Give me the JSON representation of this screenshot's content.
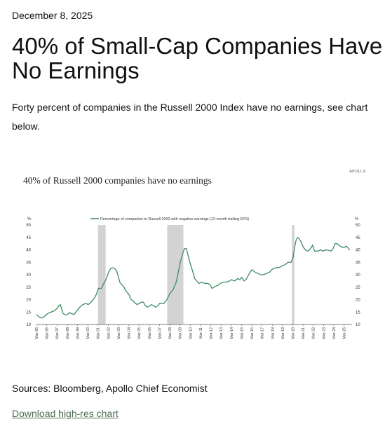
{
  "post": {
    "date": "December 8, 2025",
    "headline": "40% of Small-Cap Companies Have No Earnings",
    "intro": "Forty percent of companies in the Russell 2000 Index have no earnings, see chart below.",
    "sources": "Sources: Bloomberg, Apollo Chief Economist",
    "download_label": "Download high-res chart"
  },
  "colors": {
    "line": "#3e8a64",
    "recession": "#d3d3d3",
    "axis": "#555555"
  },
  "chart_data": {
    "type": "line",
    "title": "40% of Russell 2000 companies have no earnings",
    "brand": "APOLLO",
    "y_unit_left": "%",
    "y_unit_right": "%",
    "ylim": [
      10,
      50
    ],
    "yticks": [
      10,
      15,
      20,
      25,
      30,
      35,
      40,
      45,
      50
    ],
    "xlim": [
      1995.17,
      2025.95
    ],
    "xticks": [
      "Mar-95",
      "Mar-96",
      "Mar-97",
      "Mar-98",
      "Mar-99",
      "Mar-00",
      "Mar-01",
      "Mar-02",
      "Mar-03",
      "Mar-04",
      "Mar-05",
      "Mar-06",
      "Mar-07",
      "Mar-08",
      "Mar-09",
      "Mar-10",
      "Mar-11",
      "Mar-12",
      "Mar-13",
      "Mar-14",
      "Mar-15",
      "Mar-16",
      "Mar-17",
      "Mar-18",
      "Mar-19",
      "Mar-20",
      "Mar-21",
      "Mar-22",
      "Mar-23",
      "Mar-24",
      "Mar-25"
    ],
    "legend_position": "top-center",
    "grid": false,
    "recessions": [
      [
        2001.17,
        2001.92
      ],
      [
        2007.92,
        2009.5
      ],
      [
        2020.08,
        2020.33
      ]
    ],
    "series": [
      {
        "name": "Percentage of companies in Russell 2000 with negative earnings (12-month trailing EPS)",
        "x": [
          1995.17,
          1995.5,
          1995.75,
          1996.0,
          1996.3,
          1996.6,
          1996.9,
          1997.2,
          1997.35,
          1997.5,
          1997.75,
          1998.0,
          1998.2,
          1998.4,
          1998.6,
          1998.85,
          1999.1,
          1999.4,
          1999.7,
          2000.0,
          2000.2,
          2000.4,
          2000.6,
          2000.8,
          2001.0,
          2001.2,
          2001.5,
          2001.8,
          2002.0,
          2002.2,
          2002.4,
          2002.6,
          2002.8,
          2003.0,
          2003.1,
          2003.3,
          2003.5,
          2003.7,
          2003.9,
          2004.0,
          2004.2,
          2004.4,
          2004.6,
          2004.8,
          2005.0,
          2005.2,
          2005.4,
          2005.6,
          2005.8,
          2006.0,
          2006.2,
          2006.4,
          2006.6,
          2006.8,
          2007.0,
          2007.2,
          2007.4,
          2007.6,
          2007.9,
          2008.0,
          2008.2,
          2008.5,
          2008.8,
          2009.0,
          2009.2,
          2009.4,
          2009.6,
          2009.8,
          2010.0,
          2010.2,
          2010.4,
          2010.6,
          2010.8,
          2011.0,
          2011.3,
          2011.6,
          2011.9,
          2012.1,
          2012.3,
          2012.5,
          2012.7,
          2012.9,
          2013.1,
          2013.4,
          2013.7,
          2014.0,
          2014.2,
          2014.5,
          2014.8,
          2015.0,
          2015.2,
          2015.4,
          2015.6,
          2015.8,
          2016.0,
          2016.2,
          2016.5,
          2016.8,
          2017.0,
          2017.3,
          2017.6,
          2017.9,
          2018.1,
          2018.3,
          2018.6,
          2018.9,
          2019.1,
          2019.4,
          2019.7,
          2020.0,
          2020.2,
          2020.35,
          2020.5,
          2020.65,
          2020.8,
          2021.0,
          2021.2,
          2021.4,
          2021.6,
          2021.8,
          2022.0,
          2022.1,
          2022.3,
          2022.6,
          2022.9,
          2023.1,
          2023.4,
          2023.7,
          2023.9,
          2024.1,
          2024.3,
          2024.5,
          2024.8,
          2025.0,
          2025.2,
          2025.4,
          2025.6,
          2025.75
        ],
        "values": [
          14.0,
          12.8,
          12.6,
          13.5,
          14.5,
          15.0,
          15.5,
          16.5,
          17.5,
          18.0,
          14.5,
          13.8,
          14.0,
          14.8,
          14.3,
          14.0,
          15.5,
          17.0,
          18.0,
          18.5,
          18.0,
          18.5,
          19.5,
          20.5,
          22.0,
          24.5,
          24.5,
          27.0,
          28.5,
          31.0,
          32.5,
          32.8,
          32.5,
          31.5,
          30.0,
          27.0,
          26.0,
          25.0,
          23.5,
          23.0,
          22.0,
          20.0,
          19.5,
          18.5,
          18.0,
          18.5,
          19.0,
          19.0,
          17.5,
          17.0,
          17.5,
          18.0,
          17.5,
          17.0,
          17.5,
          18.5,
          18.5,
          18.5,
          20.0,
          21.0,
          22.5,
          24.0,
          27.0,
          31.0,
          35.0,
          38.0,
          40.5,
          40.5,
          37.0,
          34.0,
          31.5,
          28.5,
          27.5,
          26.5,
          27.0,
          26.5,
          26.5,
          26.0,
          24.5,
          25.0,
          25.5,
          25.8,
          26.5,
          27.0,
          27.0,
          27.5,
          28.0,
          27.5,
          28.5,
          28.0,
          29.0,
          27.5,
          28.0,
          29.5,
          31.0,
          32.0,
          31.0,
          30.5,
          30.0,
          30.0,
          30.5,
          31.0,
          32.0,
          32.5,
          32.8,
          33.0,
          33.5,
          34.0,
          35.0,
          35.0,
          37.0,
          41.0,
          44.0,
          45.0,
          44.5,
          43.0,
          41.0,
          40.0,
          39.5,
          40.0,
          41.0,
          42.0,
          39.5,
          39.5,
          40.0,
          39.5,
          40.0,
          39.8,
          39.5,
          40.5,
          42.5,
          42.5,
          41.5,
          41.0,
          41.0,
          41.5,
          40.5,
          40.0
        ]
      }
    ]
  }
}
